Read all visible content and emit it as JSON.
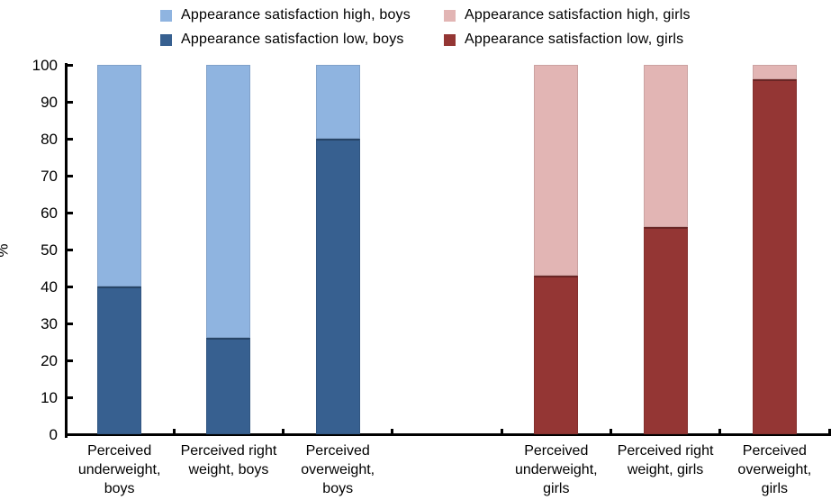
{
  "colors": {
    "high_boys": "#8FB4E0",
    "low_boys": "#376090",
    "high_girls": "#E2B5B4",
    "low_girls": "#943634",
    "axis": "#000000",
    "background": "#FFFFFF"
  },
  "legend": {
    "position": "top",
    "items": [
      {
        "label": "Appearance satisfaction high, boys",
        "color_key": "high_boys"
      },
      {
        "label": "Appearance satisfaction low, boys",
        "color_key": "low_boys"
      },
      {
        "label": "Appearance satisfaction high, girls",
        "color_key": "high_girls"
      },
      {
        "label": "Appearance satisfaction low, girls",
        "color_key": "low_girls"
      }
    ]
  },
  "chart_data": {
    "type": "bar",
    "stacked": true,
    "percent_stacked": true,
    "title": "",
    "xlabel": "",
    "ylabel": "%",
    "ylim": [
      0,
      100
    ],
    "yticks": [
      0,
      10,
      20,
      30,
      40,
      50,
      60,
      70,
      80,
      90,
      100
    ],
    "grid": false,
    "legend_position": "top",
    "slot_count": 7,
    "categories": [
      "Perceived underweight, boys",
      "Perceived right weight, boys",
      "Perceived overweight, boys",
      "Perceived underweight, girls",
      "Perceived right weight, girls",
      "Perceived overweight, girls"
    ],
    "series": [
      {
        "name": "Appearance satisfaction low, boys",
        "color_key": "low_boys",
        "values": [
          40,
          26,
          80,
          null,
          null,
          null
        ]
      },
      {
        "name": "Appearance satisfaction high, boys",
        "color_key": "high_boys",
        "values": [
          60,
          74,
          20,
          null,
          null,
          null
        ]
      },
      {
        "name": "Appearance satisfaction low, girls",
        "color_key": "low_girls",
        "values": [
          null,
          null,
          null,
          43,
          56,
          96
        ]
      },
      {
        "name": "Appearance satisfaction high, girls",
        "color_key": "high_girls",
        "values": [
          null,
          null,
          null,
          57,
          44,
          4
        ]
      }
    ],
    "bars": [
      {
        "slot": 0,
        "category": "Perceived underweight, boys",
        "label_lines": [
          "Perceived",
          "underweight,",
          "boys"
        ],
        "low": 40,
        "high": 60,
        "low_color_key": "low_boys",
        "high_color_key": "high_boys"
      },
      {
        "slot": 1,
        "category": "Perceived right weight, boys",
        "label_lines": [
          "Perceived right",
          "weight, boys"
        ],
        "low": 26,
        "high": 74,
        "low_color_key": "low_boys",
        "high_color_key": "high_boys"
      },
      {
        "slot": 2,
        "category": "Perceived overweight, boys",
        "label_lines": [
          "Perceived",
          "overweight,",
          "boys"
        ],
        "low": 80,
        "high": 20,
        "low_color_key": "low_boys",
        "high_color_key": "high_boys"
      },
      {
        "slot": 4,
        "category": "Perceived underweight, girls",
        "label_lines": [
          "Perceived",
          "underweight,",
          "girls"
        ],
        "low": 43,
        "high": 57,
        "low_color_key": "low_girls",
        "high_color_key": "high_girls"
      },
      {
        "slot": 5,
        "category": "Perceived right weight, girls",
        "label_lines": [
          "Perceived right",
          "weight, girls"
        ],
        "low": 56,
        "high": 44,
        "low_color_key": "low_girls",
        "high_color_key": "high_girls"
      },
      {
        "slot": 6,
        "category": "Perceived overweight, girls",
        "label_lines": [
          "Perceived",
          "overweight,",
          "girls"
        ],
        "low": 96,
        "high": 4,
        "low_color_key": "low_girls",
        "high_color_key": "high_girls"
      }
    ]
  }
}
